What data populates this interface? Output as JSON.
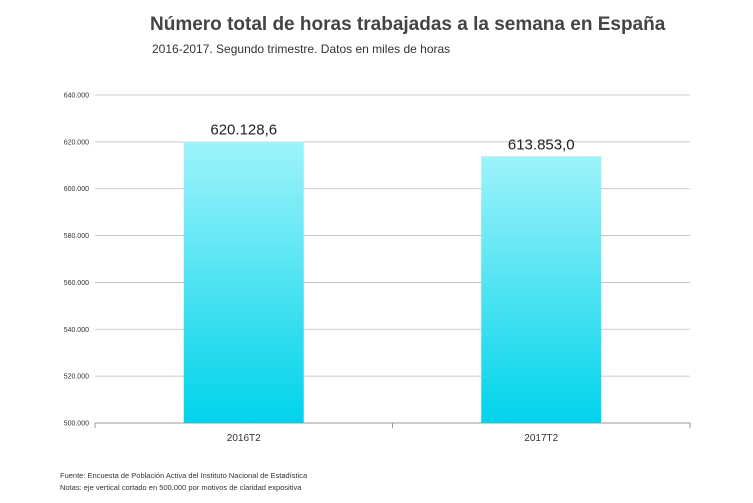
{
  "chart_data": {
    "type": "bar",
    "title": "Número total de horas trabajadas a la semana en España",
    "subtitle": "2016-2017. Segundo trimestre. Datos en miles de horas",
    "categories": [
      "2016T2",
      "2017T2"
    ],
    "values": [
      620128.6,
      613853.0
    ],
    "data_labels": [
      "620.128,6",
      "613.853,0"
    ],
    "ylim": [
      500000,
      640000
    ],
    "yticks": [
      500000,
      520000,
      540000,
      560000,
      580000,
      600000,
      620000,
      640000
    ],
    "ytick_labels": [
      "500.000",
      "520.000",
      "540.000",
      "560.000",
      "580.000",
      "600.000",
      "620.000",
      "640.000"
    ],
    "grid": true,
    "bar_color_top": "#9ef3fb",
    "bar_color_bottom": "#00d3ea",
    "xlabel": "",
    "ylabel": ""
  },
  "footer": {
    "source": "Fuente: Encuesta de Población Activa del Instituto Nacional de Estadística",
    "note": "Notas: eje vertical cortado en 500.000 por motivos de claridad expositiva"
  }
}
